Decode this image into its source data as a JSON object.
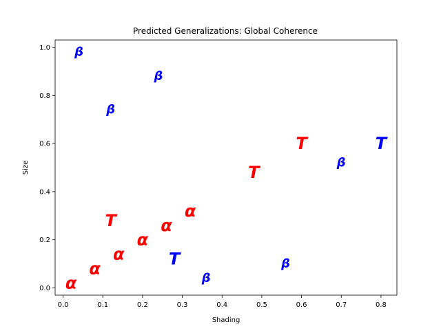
{
  "chart_data": {
    "type": "scatter",
    "title": "Predicted Generalizations: Global Coherence",
    "xlabel": "Shading",
    "ylabel": "Size",
    "xlim": [
      -0.02,
      0.84
    ],
    "ylim": [
      -0.03,
      1.03
    ],
    "xticks": [
      "0.0",
      "0.1",
      "0.2",
      "0.3",
      "0.4",
      "0.5",
      "0.6",
      "0.7",
      "0.8"
    ],
    "yticks": [
      "0.0",
      "0.2",
      "0.4",
      "0.6",
      "0.8",
      "1.0"
    ],
    "grid": false,
    "colors": {
      "red": "#ff0000",
      "blue": "#0000ff"
    },
    "points": [
      {
        "x": 0.02,
        "y": 0.02,
        "symbol": "α",
        "color": "red",
        "scale": 1.0
      },
      {
        "x": 0.08,
        "y": 0.08,
        "symbol": "α",
        "color": "red",
        "scale": 1.0
      },
      {
        "x": 0.14,
        "y": 0.14,
        "symbol": "α",
        "color": "red",
        "scale": 1.0
      },
      {
        "x": 0.2,
        "y": 0.2,
        "symbol": "α",
        "color": "red",
        "scale": 1.0
      },
      {
        "x": 0.26,
        "y": 0.26,
        "symbol": "α",
        "color": "red",
        "scale": 1.0
      },
      {
        "x": 0.32,
        "y": 0.32,
        "symbol": "α",
        "color": "red",
        "scale": 1.0
      },
      {
        "x": 0.12,
        "y": 0.28,
        "symbol": "T",
        "color": "red",
        "scale": 1.0
      },
      {
        "x": 0.48,
        "y": 0.48,
        "symbol": "T",
        "color": "red",
        "scale": 1.0
      },
      {
        "x": 0.6,
        "y": 0.6,
        "symbol": "T",
        "color": "red",
        "scale": 1.0
      },
      {
        "x": 0.28,
        "y": 0.12,
        "symbol": "T",
        "color": "blue",
        "scale": 1.0
      },
      {
        "x": 0.8,
        "y": 0.6,
        "symbol": "T",
        "color": "blue",
        "scale": 1.0
      },
      {
        "x": 0.04,
        "y": 0.98,
        "symbol": "β",
        "color": "blue",
        "scale": 0.75
      },
      {
        "x": 0.12,
        "y": 0.74,
        "symbol": "β",
        "color": "blue",
        "scale": 0.75
      },
      {
        "x": 0.24,
        "y": 0.88,
        "symbol": "β",
        "color": "blue",
        "scale": 0.75
      },
      {
        "x": 0.36,
        "y": 0.04,
        "symbol": "β",
        "color": "blue",
        "scale": 0.75
      },
      {
        "x": 0.56,
        "y": 0.1,
        "symbol": "β",
        "color": "blue",
        "scale": 0.75
      },
      {
        "x": 0.7,
        "y": 0.52,
        "symbol": "β",
        "color": "blue",
        "scale": 0.75
      }
    ]
  }
}
